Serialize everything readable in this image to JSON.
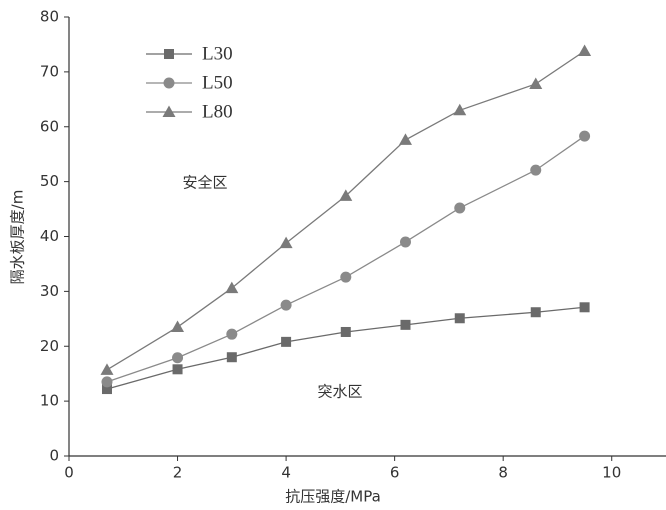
{
  "chart_data": {
    "type": "line",
    "x_label": "抗压强度/MPa",
    "y_label": "隔水板厚度/m",
    "annotations": [
      "安全区",
      "突水区"
    ],
    "xlim": [
      0,
      11
    ],
    "xticks": [
      0,
      2,
      4,
      6,
      8,
      10
    ],
    "ylim": [
      0,
      80
    ],
    "yticks": [
      0,
      10,
      20,
      30,
      40,
      50,
      60,
      70,
      80
    ],
    "x": [
      0.7,
      2,
      3,
      4,
      5.1,
      6.2,
      7.2,
      8.6,
      9.5
    ],
    "series": [
      {
        "name": "L30",
        "color": "#6a6a6a",
        "marker": "square",
        "values": [
          12.2,
          15.8,
          18.0,
          20.8,
          22.6,
          23.9,
          25.1,
          26.2,
          27.1
        ]
      },
      {
        "name": "L50",
        "color": "#8a8a8a",
        "marker": "circle",
        "values": [
          13.5,
          17.9,
          22.2,
          27.5,
          32.6,
          39.0,
          45.2,
          52.1,
          58.3
        ]
      },
      {
        "name": "L80",
        "color": "#7a7a7a",
        "marker": "triangle",
        "values": [
          15.7,
          23.5,
          30.6,
          38.8,
          47.4,
          57.6,
          63.0,
          67.8,
          73.8
        ]
      }
    ]
  }
}
